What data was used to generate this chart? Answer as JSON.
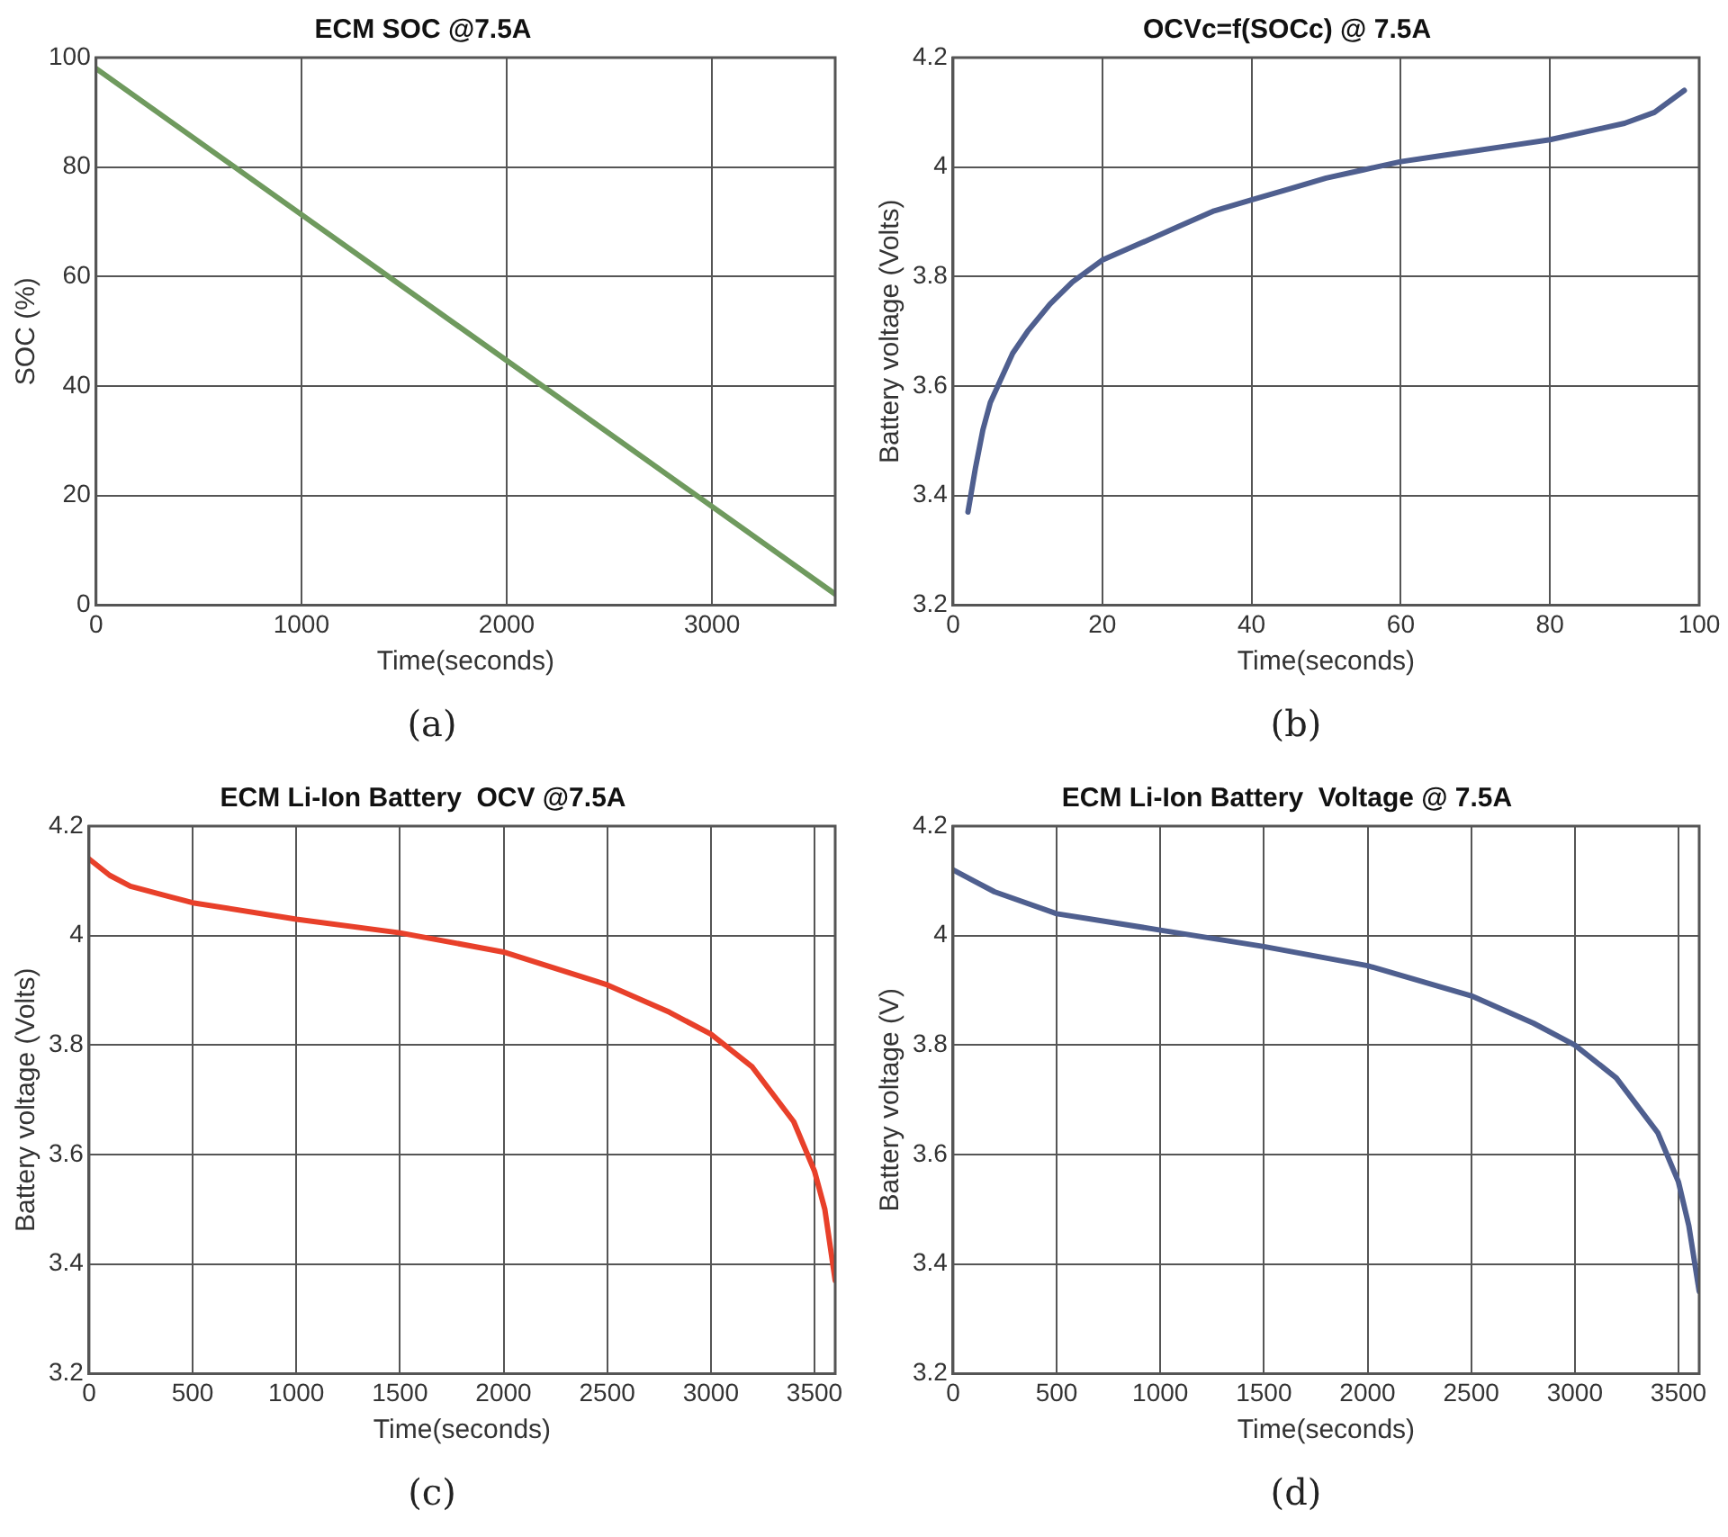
{
  "chart_data": [
    {
      "type": "line",
      "title": "ECM SOC @7.5A",
      "xlabel": "Time(seconds)",
      "ylabel": "SOC (%)",
      "annotations": [
        "(a)"
      ],
      "xlim": [
        0,
        3600
      ],
      "xticks": [
        0,
        1000,
        2000,
        3000
      ],
      "ylim": [
        0,
        100
      ],
      "yticks": [
        0,
        20,
        40,
        60,
        80,
        100
      ],
      "grid": true,
      "legend": false,
      "marker": "none",
      "line_style": "solid",
      "series": [
        {
          "color": "#6f9a5e",
          "x": [
            0,
            3600
          ],
          "values": [
            98,
            2
          ]
        }
      ]
    },
    {
      "type": "line",
      "title": "OCVc=f(SOCc) @ 7.5A",
      "xlabel": "Time(seconds)",
      "ylabel": "Battery voltage (Volts)",
      "annotations": [
        "(b)"
      ],
      "xlim": [
        0,
        100
      ],
      "xticks": [
        0,
        20,
        40,
        60,
        80,
        100
      ],
      "ylim": [
        3.2,
        4.2
      ],
      "yticks": [
        3.2,
        3.4,
        3.6,
        3.8,
        4,
        4.2
      ],
      "grid": true,
      "legend": false,
      "marker": "none",
      "line_style": "solid",
      "series": [
        {
          "color": "#4f5f8f",
          "x": [
            2,
            3,
            4,
            5,
            6,
            8,
            10,
            13,
            16,
            20,
            25,
            30,
            35,
            40,
            45,
            50,
            55,
            60,
            65,
            70,
            75,
            80,
            85,
            90,
            94,
            98
          ],
          "values": [
            3.37,
            3.45,
            3.52,
            3.57,
            3.6,
            3.66,
            3.7,
            3.75,
            3.79,
            3.83,
            3.86,
            3.89,
            3.92,
            3.94,
            3.96,
            3.98,
            3.995,
            4.01,
            4.02,
            4.03,
            4.04,
            4.05,
            4.065,
            4.08,
            4.1,
            4.14
          ]
        }
      ]
    },
    {
      "type": "line",
      "title": "ECM Li-Ion Battery  OCV @7.5A",
      "xlabel": "Time(seconds)",
      "ylabel": "Battery voltage (Volts)",
      "annotations": [
        "(c)"
      ],
      "xlim": [
        0,
        3600
      ],
      "xticks": [
        0,
        500,
        1000,
        1500,
        2000,
        2500,
        3000,
        3500
      ],
      "ylim": [
        3.2,
        4.2
      ],
      "yticks": [
        3.2,
        3.4,
        3.6,
        3.8,
        4,
        4.2
      ],
      "grid": true,
      "legend": false,
      "marker": "none",
      "line_style": "solid",
      "series": [
        {
          "color": "#e8402a",
          "x": [
            0,
            100,
            200,
            400,
            500,
            1000,
            1500,
            2000,
            2500,
            2800,
            3000,
            3200,
            3400,
            3500,
            3550,
            3600
          ],
          "values": [
            4.14,
            4.11,
            4.09,
            4.07,
            4.06,
            4.03,
            4.005,
            3.97,
            3.91,
            3.86,
            3.82,
            3.76,
            3.66,
            3.57,
            3.5,
            3.37
          ]
        }
      ]
    },
    {
      "type": "line",
      "title": "ECM Li-Ion Battery  Voltage @ 7.5A",
      "xlabel": "Time(seconds)",
      "ylabel": "Battery voltage (V)",
      "annotations": [
        "(d)"
      ],
      "xlim": [
        0,
        3600
      ],
      "xticks": [
        0,
        500,
        1000,
        1500,
        2000,
        2500,
        3000,
        3500
      ],
      "ylim": [
        3.2,
        4.2
      ],
      "yticks": [
        3.2,
        3.4,
        3.6,
        3.8,
        4,
        4.2
      ],
      "grid": true,
      "legend": false,
      "marker": "none",
      "line_style": "solid",
      "series": [
        {
          "color": "#4f5f8f",
          "x": [
            0,
            100,
            200,
            500,
            1000,
            1500,
            2000,
            2500,
            2800,
            3000,
            3200,
            3400,
            3500,
            3550,
            3600
          ],
          "values": [
            4.12,
            4.1,
            4.08,
            4.04,
            4.01,
            3.98,
            3.945,
            3.89,
            3.84,
            3.8,
            3.74,
            3.64,
            3.55,
            3.47,
            3.35
          ]
        }
      ]
    }
  ]
}
